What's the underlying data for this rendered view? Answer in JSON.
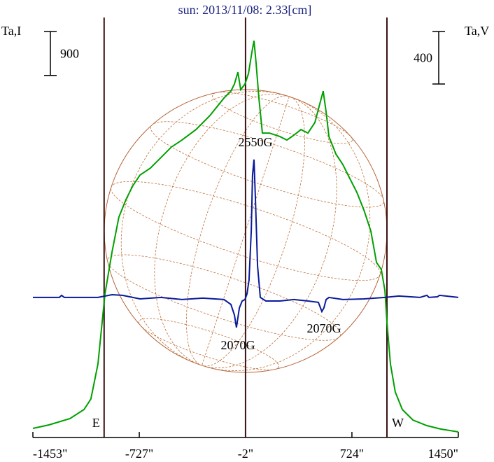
{
  "chart_data": {
    "type": "line",
    "title": "sun: 2013/11/08: 2.33[cm]",
    "y_label": "Ta,I",
    "y2_label": "Ta,V",
    "xlim": [
      -1453,
      1450
    ],
    "xticks": [
      {
        "value": -1453,
        "label": "-1453\""
      },
      {
        "value": -727,
        "label": "-727\""
      },
      {
        "value": -2,
        "label": "-2\""
      },
      {
        "value": 724,
        "label": "724\""
      },
      {
        "value": 1450,
        "label": "1450\""
      }
    ],
    "ylim": [
      0,
      8600
    ],
    "y2lim": [
      -1067,
      2133
    ],
    "scale_bars": [
      {
        "value": 900,
        "axis": "y"
      },
      {
        "value": 400,
        "axis": "y2"
      }
    ],
    "markers": [
      {
        "x": -967,
        "label": "E"
      },
      {
        "x": -2
      },
      {
        "x": 963,
        "label": "W"
      }
    ],
    "annotations": [
      "2550G",
      "2070G",
      "2070G"
    ],
    "series": [
      {
        "color": "#00a000",
        "axis": "y",
        "x": [
          -1453,
          -1343,
          -1200,
          -1104,
          -1057,
          -1009,
          -961,
          -913,
          -866,
          -818,
          -770,
          -722,
          -651,
          -579,
          -508,
          -436,
          -340,
          -245,
          -149,
          -102,
          -78,
          -54,
          -35,
          -6,
          18,
          41,
          56,
          70,
          89,
          113,
          161,
          233,
          280,
          328,
          376,
          424,
          471,
          509,
          528,
          548,
          567,
          615,
          662,
          710,
          758,
          806,
          853,
          892,
          925,
          949,
          963,
          987,
          1020,
          1068,
          1140,
          1235,
          1331,
          1450
        ],
        "values": [
          186,
          258,
          387,
          573,
          788,
          1505,
          2938,
          3798,
          4514,
          4872,
          5159,
          5374,
          5517,
          5732,
          5947,
          6090,
          6305,
          6592,
          6950,
          7093,
          7237,
          7480,
          7122,
          7237,
          7452,
          7882,
          8125,
          7667,
          6950,
          6234,
          6234,
          6162,
          6090,
          6191,
          6305,
          6234,
          6449,
          6878,
          7093,
          6663,
          6162,
          5804,
          5589,
          5302,
          5016,
          4657,
          4227,
          3583,
          3439,
          3009,
          2364,
          1505,
          932,
          573,
          358,
          244,
          172,
          115
        ]
      },
      {
        "color": "#0a1a9a",
        "axis": "y2",
        "x": [
          -1453,
          -1272,
          -1257,
          -1238,
          -1009,
          -913,
          -842,
          -722,
          -579,
          -436,
          -293,
          -149,
          -102,
          -78,
          -64,
          -44,
          -25,
          -6,
          8,
          22,
          37,
          46,
          56,
          65,
          80,
          99,
          137,
          233,
          328,
          424,
          495,
          519,
          533,
          548,
          567,
          662,
          806,
          949,
          1044,
          1188,
          1235,
          1250,
          1307,
          1321,
          1450
        ],
        "values": [
          0,
          0,
          16,
          0,
          0,
          21,
          16,
          -11,
          0,
          -16,
          -5,
          -16,
          -53,
          -133,
          -229,
          -80,
          -27,
          -16,
          27,
          133,
          507,
          933,
          1051,
          773,
          240,
          0,
          -27,
          -27,
          -16,
          -27,
          -37,
          -107,
          -80,
          -16,
          0,
          -16,
          -11,
          0,
          11,
          0,
          16,
          0,
          5,
          16,
          0
        ]
      }
    ]
  }
}
